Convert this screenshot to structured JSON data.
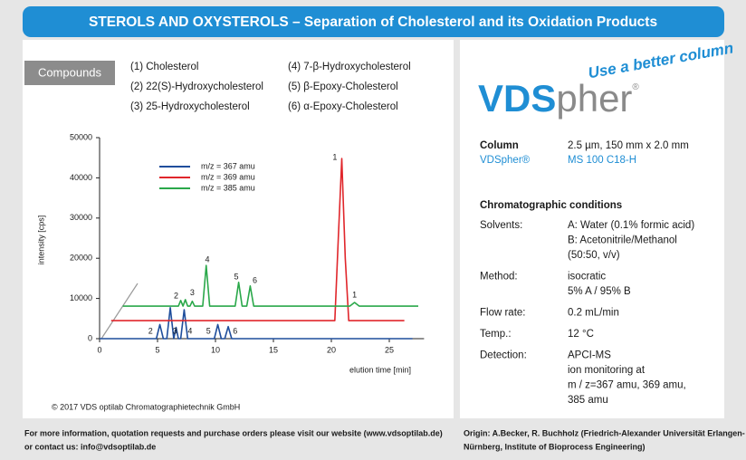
{
  "header": {
    "title": "STEROLS AND OXYSTEROLS – Separation of Cholesterol and its Oxidation Products"
  },
  "compounds": {
    "label": "Compounds",
    "items": [
      "(1) Cholesterol",
      "(2) 22(S)-Hydroxycholesterol",
      "(3) 25-Hydroxycholesterol",
      "(4) 7-β-Hydroxycholesterol",
      "(5) β-Epoxy-Cholesterol",
      "(6) α-Epoxy-Cholesterol"
    ]
  },
  "chart_data": {
    "type": "line",
    "xlabel": "elution time [min]",
    "ylabel": "intensity [cps]",
    "xlim": [
      0,
      28
    ],
    "ylim": [
      0,
      50000
    ],
    "xticks": [
      0,
      5,
      10,
      15,
      20,
      25
    ],
    "yticks": [
      0,
      10000,
      20000,
      30000,
      40000,
      50000
    ],
    "series": [
      {
        "name": "m/z = 367 amu",
        "color": "#1f4e9c",
        "x": [
          0,
          4.9,
          5.2,
          5.5,
          5.8,
          6.1,
          6.4,
          6.6,
          6.8,
          7.0,
          7.3,
          7.6,
          9.9,
          10.2,
          10.5,
          10.8,
          11.1,
          11.4,
          27
        ],
        "values": [
          0,
          0,
          3500,
          0,
          0,
          7700,
          0,
          2800,
          0,
          0,
          7200,
          0,
          0,
          3500,
          0,
          0,
          3000,
          0,
          0
        ]
      },
      {
        "name": "m/z = 369 amu",
        "color": "#e0262b",
        "x": [
          1,
          20.3,
          20.6,
          20.9,
          21.2,
          21.5,
          26.3
        ],
        "values": [
          4500,
          4500,
          25000,
          44800,
          20000,
          4500,
          4500
        ]
      },
      {
        "name": "m/z = 385 amu",
        "color": "#2aa84a",
        "x": [
          2,
          6.8,
          7.0,
          7.2,
          7.4,
          7.6,
          7.8,
          8.0,
          8.2,
          8.9,
          9.2,
          9.5,
          11.7,
          12.0,
          12.3,
          12.7,
          13.0,
          13.3,
          21.6,
          22.0,
          22.4,
          27.5
        ],
        "values": [
          8100,
          8100,
          9500,
          8100,
          9700,
          8100,
          8100,
          9300,
          8100,
          8100,
          18200,
          8100,
          8100,
          14000,
          8100,
          8100,
          13100,
          8100,
          8100,
          9000,
          8100,
          8100
        ]
      }
    ],
    "annotations": [
      {
        "text": "2",
        "x": 4.4,
        "y": 1800
      },
      {
        "text": "3",
        "x": 6.5,
        "y": 1800
      },
      {
        "text": "4",
        "x": 7.8,
        "y": 1800
      },
      {
        "text": "5",
        "x": 9.4,
        "y": 1800
      },
      {
        "text": "6",
        "x": 11.7,
        "y": 1800
      },
      {
        "text": "1",
        "x": 20.3,
        "y": 45000
      },
      {
        "text": "2",
        "x": 6.6,
        "y": 10600
      },
      {
        "text": "3",
        "x": 8.0,
        "y": 11300
      },
      {
        "text": "4",
        "x": 9.3,
        "y": 19600
      },
      {
        "text": "5",
        "x": 11.8,
        "y": 15300
      },
      {
        "text": "6",
        "x": 13.4,
        "y": 14400
      },
      {
        "text": "1",
        "x": 22.0,
        "y": 10800
      }
    ]
  },
  "copyright": "© 2017 VDS optilab Chromatographietechnik GmbH",
  "brand": {
    "slogan": "Use a better column",
    "logo_main": "VDS",
    "logo_rest": "pher",
    "logo_mark": "®"
  },
  "specs": {
    "column_label": "Column",
    "column_value": "2.5 µm, 150 mm x 2.0 mm",
    "column_brand": "VDSpher®",
    "column_type": "MS 100 C18-H",
    "conditions_title": "Chromatographic conditions",
    "rows": [
      {
        "label": "Solvents:",
        "lines": [
          "A: Water (0.1% formic acid)",
          "B: Acetonitrile/Methanol",
          "(50:50, v/v)"
        ]
      },
      {
        "label": "Method:",
        "lines": [
          "isocratic",
          "5% A / 95% B"
        ]
      },
      {
        "label": "Flow rate:",
        "lines": [
          "0.2 mL/min"
        ]
      },
      {
        "label": "Temp.:",
        "lines": [
          "12 °C"
        ]
      },
      {
        "label": "Detection:",
        "lines": [
          "APCI-MS",
          "ion monitoring at",
          "m / z=367 amu, 369 amu,",
          "385 amu"
        ]
      }
    ]
  },
  "footer": {
    "left": [
      "For more information, quotation requests and purchase orders please visit our website (www.vdsoptilab.de)",
      "or contact us: info@vdsoptilab.de"
    ],
    "right": [
      "Origin: A.Becker, R. Buchholz (Friedrich-Alexander Universität Erlangen-",
      "Nürnberg, Institute of Bioprocess Engineering)"
    ]
  }
}
